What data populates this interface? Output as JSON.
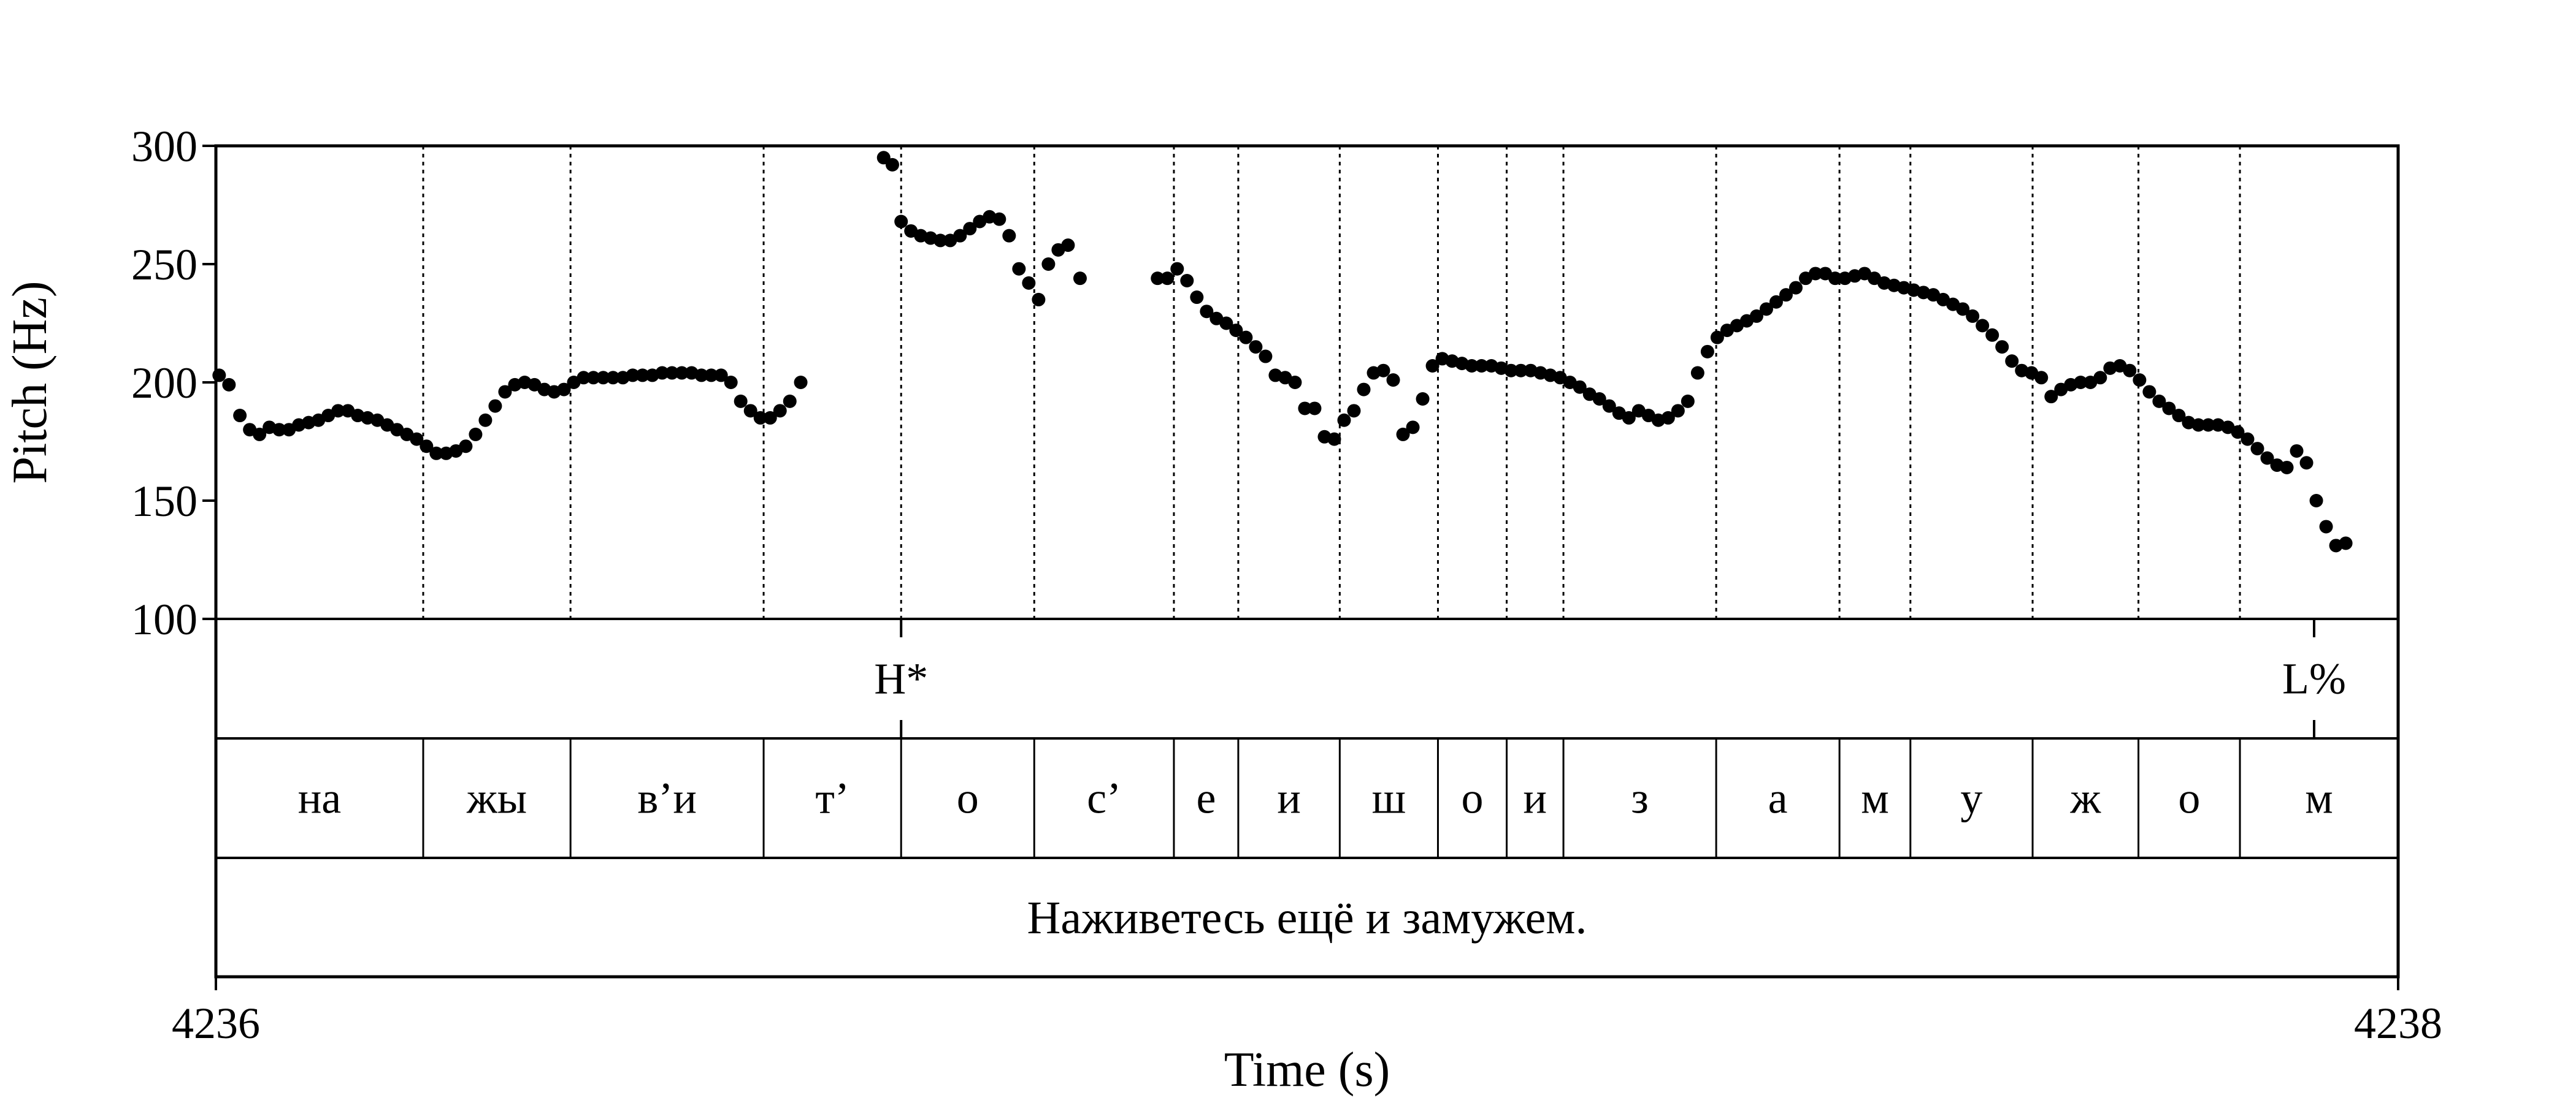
{
  "chart_data": {
    "type": "scatter",
    "title": "",
    "xlabel": "Time (s)",
    "ylabel": "Pitch (Hz)",
    "xlim": [
      4236,
      4238
    ],
    "ylim": [
      100,
      300
    ],
    "x_tick_labels": [
      "4236",
      "4238"
    ],
    "y_ticks": [
      100,
      150,
      200,
      250,
      300
    ],
    "y_tick_labels": [
      "100",
      "150",
      "200",
      "250",
      "300"
    ],
    "grid": "dotted vertical lines at segment boundaries",
    "tones": [
      {
        "label": "H*",
        "time": 4236.628
      },
      {
        "label": "L%",
        "time": 4237.923
      }
    ],
    "segments": [
      {
        "label": "на",
        "start": 4236.0,
        "end": 4236.19
      },
      {
        "label": "жы",
        "start": 4236.19,
        "end": 4236.325
      },
      {
        "label": "в’и",
        "start": 4236.325,
        "end": 4236.502
      },
      {
        "label": "т’",
        "start": 4236.502,
        "end": 4236.628
      },
      {
        "label": "о",
        "start": 4236.628,
        "end": 4236.75
      },
      {
        "label": "с’",
        "start": 4236.75,
        "end": 4236.878
      },
      {
        "label": "е",
        "start": 4236.878,
        "end": 4236.937
      },
      {
        "label": "и",
        "start": 4236.937,
        "end": 4237.03
      },
      {
        "label": "ш",
        "start": 4237.03,
        "end": 4237.12
      },
      {
        "label": "о",
        "start": 4237.12,
        "end": 4237.183
      },
      {
        "label": "и",
        "start": 4237.183,
        "end": 4237.235
      },
      {
        "label": "з",
        "start": 4237.235,
        "end": 4237.375
      },
      {
        "label": "а",
        "start": 4237.375,
        "end": 4237.488
      },
      {
        "label": "м",
        "start": 4237.488,
        "end": 4237.553
      },
      {
        "label": "у",
        "start": 4237.553,
        "end": 4237.665
      },
      {
        "label": "ж",
        "start": 4237.665,
        "end": 4237.762
      },
      {
        "label": "о",
        "start": 4237.762,
        "end": 4237.855
      },
      {
        "label": "м",
        "start": 4237.855,
        "end": 4238.0
      }
    ],
    "sentence": "Наживетесь ещё и замужем.",
    "pitch": [
      [
        4236.003,
        203
      ],
      [
        4236.012,
        199
      ],
      [
        4236.022,
        186
      ],
      [
        4236.031,
        180
      ],
      [
        4236.04,
        178
      ],
      [
        4236.049,
        181
      ],
      [
        4236.058,
        180
      ],
      [
        4236.067,
        180
      ],
      [
        4236.076,
        182
      ],
      [
        4236.085,
        183
      ],
      [
        4236.094,
        184
      ],
      [
        4236.103,
        186
      ],
      [
        4236.112,
        188
      ],
      [
        4236.121,
        188
      ],
      [
        4236.13,
        186
      ],
      [
        4236.139,
        185
      ],
      [
        4236.148,
        184
      ],
      [
        4236.157,
        182
      ],
      [
        4236.166,
        180
      ],
      [
        4236.175,
        178
      ],
      [
        4236.184,
        176
      ],
      [
        4236.193,
        173
      ],
      [
        4236.202,
        170
      ],
      [
        4236.211,
        170
      ],
      [
        4236.22,
        171
      ],
      [
        4236.229,
        173
      ],
      [
        4236.238,
        178
      ],
      [
        4236.247,
        184
      ],
      [
        4236.256,
        190
      ],
      [
        4236.265,
        196
      ],
      [
        4236.274,
        199
      ],
      [
        4236.283,
        200
      ],
      [
        4236.292,
        199
      ],
      [
        4236.301,
        197
      ],
      [
        4236.31,
        196
      ],
      [
        4236.319,
        197
      ],
      [
        4236.328,
        200
      ],
      [
        4236.337,
        202
      ],
      [
        4236.346,
        202
      ],
      [
        4236.355,
        202
      ],
      [
        4236.364,
        202
      ],
      [
        4236.373,
        202
      ],
      [
        4236.382,
        203
      ],
      [
        4236.391,
        203
      ],
      [
        4236.4,
        203
      ],
      [
        4236.409,
        204
      ],
      [
        4236.418,
        204
      ],
      [
        4236.427,
        204
      ],
      [
        4236.436,
        204
      ],
      [
        4236.445,
        203
      ],
      [
        4236.454,
        203
      ],
      [
        4236.463,
        203
      ],
      [
        4236.472,
        200
      ],
      [
        4236.481,
        192
      ],
      [
        4236.49,
        188
      ],
      [
        4236.499,
        185
      ],
      [
        4236.508,
        185
      ],
      [
        4236.517,
        188
      ],
      [
        4236.526,
        192
      ],
      [
        4236.536,
        200
      ],
      [
        4236.612,
        295
      ],
      [
        4236.62,
        292
      ],
      [
        4236.628,
        268
      ],
      [
        4236.637,
        264
      ],
      [
        4236.646,
        262
      ],
      [
        4236.655,
        261
      ],
      [
        4236.664,
        260
      ],
      [
        4236.673,
        260
      ],
      [
        4236.682,
        262
      ],
      [
        4236.691,
        265
      ],
      [
        4236.7,
        268
      ],
      [
        4236.709,
        270
      ],
      [
        4236.718,
        269
      ],
      [
        4236.727,
        262
      ],
      [
        4236.736,
        248
      ],
      [
        4236.745,
        242
      ],
      [
        4236.754,
        235
      ],
      [
        4236.763,
        250
      ],
      [
        4236.772,
        256
      ],
      [
        4236.781,
        258
      ],
      [
        4236.792,
        244
      ],
      [
        4236.863,
        244
      ],
      [
        4236.872,
        244
      ],
      [
        4236.881,
        248
      ],
      [
        4236.89,
        243
      ],
      [
        4236.899,
        236
      ],
      [
        4236.908,
        230
      ],
      [
        4236.917,
        227
      ],
      [
        4236.926,
        225
      ],
      [
        4236.935,
        222
      ],
      [
        4236.944,
        219
      ],
      [
        4236.953,
        215
      ],
      [
        4236.962,
        211
      ],
      [
        4236.971,
        203
      ],
      [
        4236.98,
        202
      ],
      [
        4236.989,
        200
      ],
      [
        4236.998,
        189
      ],
      [
        4237.007,
        189
      ],
      [
        4237.016,
        177
      ],
      [
        4237.025,
        176
      ],
      [
        4237.034,
        184
      ],
      [
        4237.043,
        188
      ],
      [
        4237.052,
        197
      ],
      [
        4237.061,
        204
      ],
      [
        4237.07,
        205
      ],
      [
        4237.079,
        201
      ],
      [
        4237.088,
        178
      ],
      [
        4237.097,
        181
      ],
      [
        4237.106,
        193
      ],
      [
        4237.115,
        207
      ],
      [
        4237.124,
        210
      ],
      [
        4237.133,
        209
      ],
      [
        4237.142,
        208
      ],
      [
        4237.151,
        207
      ],
      [
        4237.16,
        207
      ],
      [
        4237.169,
        207
      ],
      [
        4237.178,
        206
      ],
      [
        4237.187,
        205
      ],
      [
        4237.196,
        205
      ],
      [
        4237.205,
        205
      ],
      [
        4237.214,
        204
      ],
      [
        4237.223,
        203
      ],
      [
        4237.232,
        202
      ],
      [
        4237.241,
        200
      ],
      [
        4237.25,
        198
      ],
      [
        4237.259,
        195
      ],
      [
        4237.268,
        193
      ],
      [
        4237.277,
        190
      ],
      [
        4237.286,
        187
      ],
      [
        4237.295,
        185
      ],
      [
        4237.304,
        188
      ],
      [
        4237.313,
        186
      ],
      [
        4237.322,
        184
      ],
      [
        4237.331,
        185
      ],
      [
        4237.34,
        188
      ],
      [
        4237.349,
        192
      ],
      [
        4237.358,
        204
      ],
      [
        4237.367,
        213
      ],
      [
        4237.376,
        219
      ],
      [
        4237.385,
        222
      ],
      [
        4237.394,
        224
      ],
      [
        4237.403,
        226
      ],
      [
        4237.412,
        228
      ],
      [
        4237.421,
        231
      ],
      [
        4237.43,
        234
      ],
      [
        4237.439,
        237
      ],
      [
        4237.448,
        240
      ],
      [
        4237.457,
        244
      ],
      [
        4237.466,
        246
      ],
      [
        4237.475,
        246
      ],
      [
        4237.484,
        244
      ],
      [
        4237.493,
        244
      ],
      [
        4237.502,
        245
      ],
      [
        4237.511,
        246
      ],
      [
        4237.52,
        244
      ],
      [
        4237.529,
        242
      ],
      [
        4237.538,
        241
      ],
      [
        4237.547,
        240
      ],
      [
        4237.556,
        239
      ],
      [
        4237.565,
        238
      ],
      [
        4237.574,
        237
      ],
      [
        4237.583,
        235
      ],
      [
        4237.592,
        233
      ],
      [
        4237.601,
        231
      ],
      [
        4237.61,
        228
      ],
      [
        4237.619,
        224
      ],
      [
        4237.628,
        220
      ],
      [
        4237.637,
        215
      ],
      [
        4237.646,
        209
      ],
      [
        4237.655,
        205
      ],
      [
        4237.664,
        204
      ],
      [
        4237.673,
        202
      ],
      [
        4237.682,
        194
      ],
      [
        4237.691,
        197
      ],
      [
        4237.7,
        199
      ],
      [
        4237.709,
        200
      ],
      [
        4237.718,
        200
      ],
      [
        4237.727,
        202
      ],
      [
        4237.736,
        206
      ],
      [
        4237.745,
        207
      ],
      [
        4237.754,
        205
      ],
      [
        4237.763,
        201
      ],
      [
        4237.772,
        196
      ],
      [
        4237.781,
        192
      ],
      [
        4237.79,
        189
      ],
      [
        4237.799,
        186
      ],
      [
        4237.808,
        183
      ],
      [
        4237.817,
        182
      ],
      [
        4237.826,
        182
      ],
      [
        4237.835,
        182
      ],
      [
        4237.844,
        181
      ],
      [
        4237.853,
        179
      ],
      [
        4237.862,
        176
      ],
      [
        4237.871,
        172
      ],
      [
        4237.88,
        168
      ],
      [
        4237.889,
        165
      ],
      [
        4237.898,
        164
      ],
      [
        4237.907,
        171
      ],
      [
        4237.916,
        166
      ],
      [
        4237.925,
        150
      ],
      [
        4237.934,
        139
      ],
      [
        4237.943,
        131
      ],
      [
        4237.952,
        132
      ]
    ]
  }
}
